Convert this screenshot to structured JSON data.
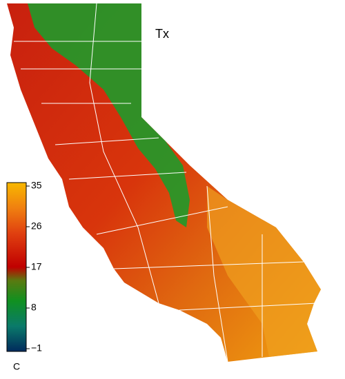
{
  "title": "Tx",
  "colorbar": {
    "lim": [
      -1,
      35
    ],
    "ticks": [
      35,
      26,
      17,
      8,
      {
        "value": -1,
        "label": "−1"
      }
    ],
    "unit": "C"
  }
}
